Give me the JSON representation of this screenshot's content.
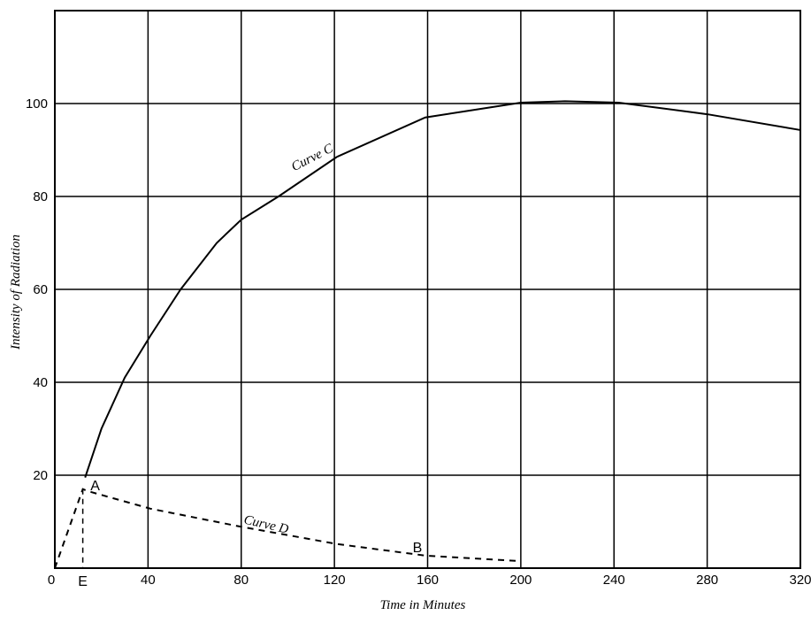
{
  "chart_data": {
    "type": "line",
    "xlabel": "Time in Minutes",
    "ylabel": "Intensity of Radiation",
    "xlim": [
      0,
      320
    ],
    "xticks": [
      0,
      40,
      80,
      120,
      160,
      200,
      240,
      280,
      320
    ],
    "ylim": [
      0,
      120
    ],
    "yticks": [
      20,
      40,
      60,
      80,
      100
    ],
    "grid": true,
    "series": [
      {
        "name": "Curve C",
        "color": "#000000",
        "style": "solid",
        "x": [
          13,
          20,
          30,
          41,
          54,
          69.5,
          80,
          96,
          121,
          159,
          200,
          219,
          242,
          280,
          320
        ],
        "values": [
          19.5,
          30,
          41,
          50,
          60,
          70,
          75,
          80,
          88.5,
          97,
          100.2,
          100.5,
          100.2,
          97.7,
          94.3
        ]
      },
      {
        "name": "Curve D",
        "color": "#000000",
        "style": "dashed",
        "x": [
          0,
          12,
          14,
          41,
          79,
          121,
          159,
          200
        ],
        "values": [
          0,
          17,
          16.6,
          12.8,
          9,
          5.2,
          2.7,
          1.5
        ]
      }
    ],
    "annotations": [
      "A",
      "B",
      "E"
    ]
  }
}
